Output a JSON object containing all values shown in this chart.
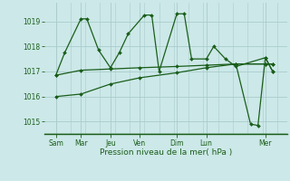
{
  "xlabel": "Pression niveau de la mer( hPa )",
  "bg_color": "#cce8e8",
  "grid_color": "#aacccc",
  "line_color": "#1a5e1a",
  "ylim": [
    1014.5,
    1019.75
  ],
  "yticks": [
    1015,
    1016,
    1017,
    1018,
    1019
  ],
  "xlim": [
    -0.5,
    16.0
  ],
  "day_labels": [
    "Sam",
    "Mar",
    "Jeu",
    "Ven",
    "Dim",
    "Lun",
    "Mer"
  ],
  "day_positions": [
    0.3,
    2.0,
    4.0,
    6.0,
    8.5,
    10.5,
    14.5
  ],
  "series1_x": [
    0.3,
    0.9,
    2.0,
    2.4,
    3.2,
    4.0,
    4.6,
    5.2,
    6.3,
    6.8,
    7.3,
    8.5,
    9.0,
    9.5,
    10.5,
    11.0,
    11.8,
    12.5,
    14.5,
    15.0
  ],
  "series1_y": [
    1016.85,
    1017.75,
    1019.1,
    1019.1,
    1017.85,
    1017.15,
    1017.75,
    1018.5,
    1019.25,
    1019.25,
    1017.0,
    1019.3,
    1019.3,
    1017.5,
    1017.5,
    1018.0,
    1017.5,
    1017.2,
    1017.55,
    1017.0
  ],
  "series2_x": [
    0.3,
    2.0,
    4.0,
    6.0,
    8.5,
    10.5,
    12.5,
    14.5,
    15.0
  ],
  "series2_y": [
    1016.85,
    1017.05,
    1017.1,
    1017.15,
    1017.2,
    1017.25,
    1017.3,
    1017.3,
    1017.3
  ],
  "series3_x": [
    0.3,
    2.0,
    4.0,
    6.0,
    8.5,
    10.5,
    12.5,
    14.5,
    15.0
  ],
  "series3_y": [
    1016.0,
    1016.1,
    1016.5,
    1016.75,
    1016.95,
    1017.15,
    1017.3,
    1017.3,
    1017.3
  ],
  "series4_x": [
    12.5,
    13.5,
    14.0,
    14.5,
    15.0
  ],
  "series4_y": [
    1017.3,
    1014.9,
    1014.85,
    1017.55,
    1017.0
  ]
}
